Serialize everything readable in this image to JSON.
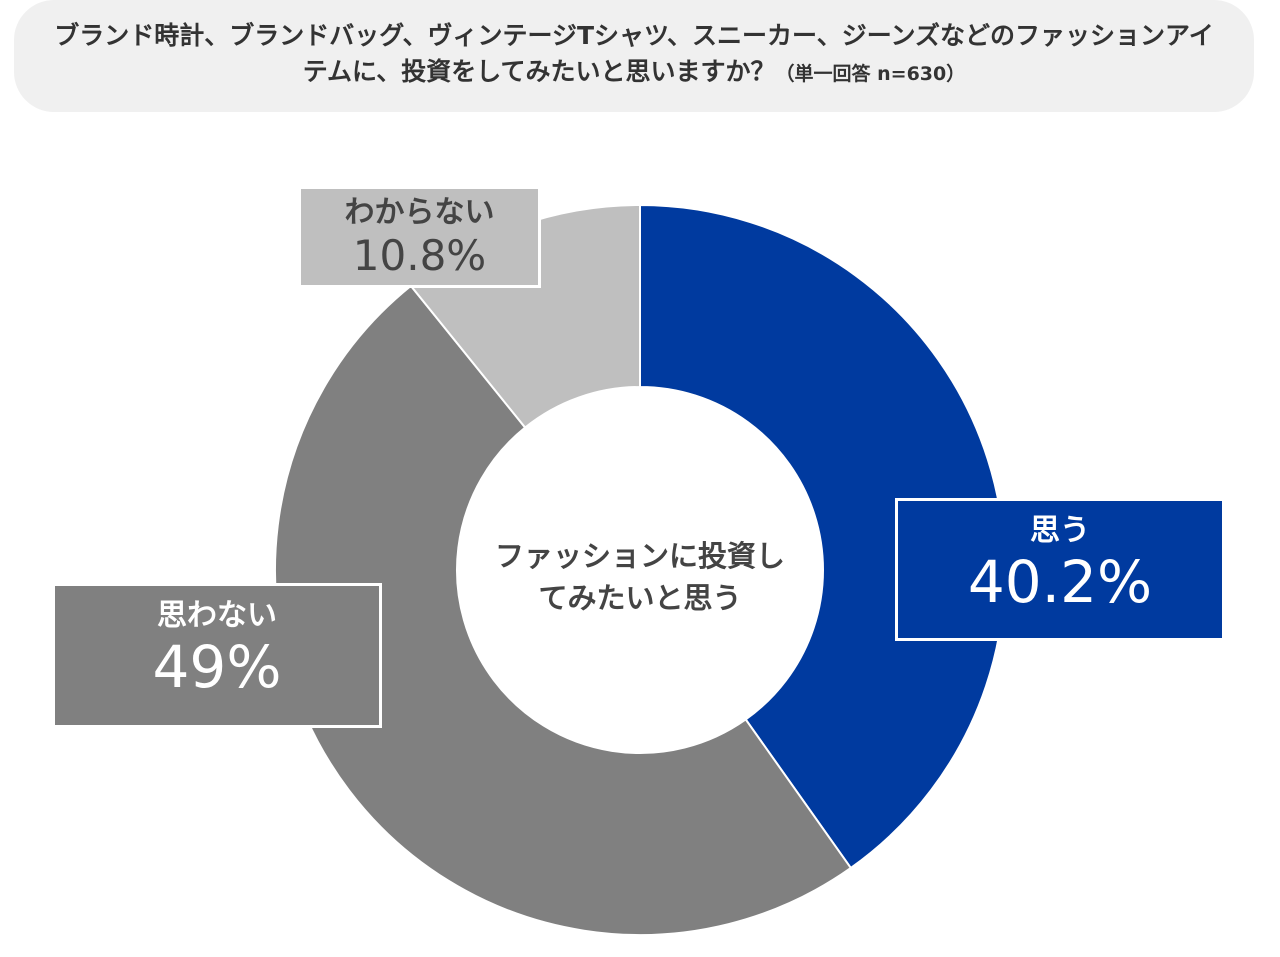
{
  "chart_data": {
    "type": "donut",
    "title": "ブランド時計、ブランドバッグ、ヴィンテージTシャツ、スニーカー、ジーンズなどのファッションアイテムに、投資をしてみたいと思いますか？",
    "subtitle": "（単一回答 n=630）",
    "center_label": "ファッションに投資してみたいと思う",
    "categories": [
      "思う",
      "思わない",
      "わからない"
    ],
    "values": [
      40.2,
      49,
      10.8
    ],
    "value_labels": [
      "40.2%",
      "49%",
      "10.8%"
    ],
    "colors": [
      "#003a9f",
      "#808080",
      "#bfbfbf"
    ]
  }
}
